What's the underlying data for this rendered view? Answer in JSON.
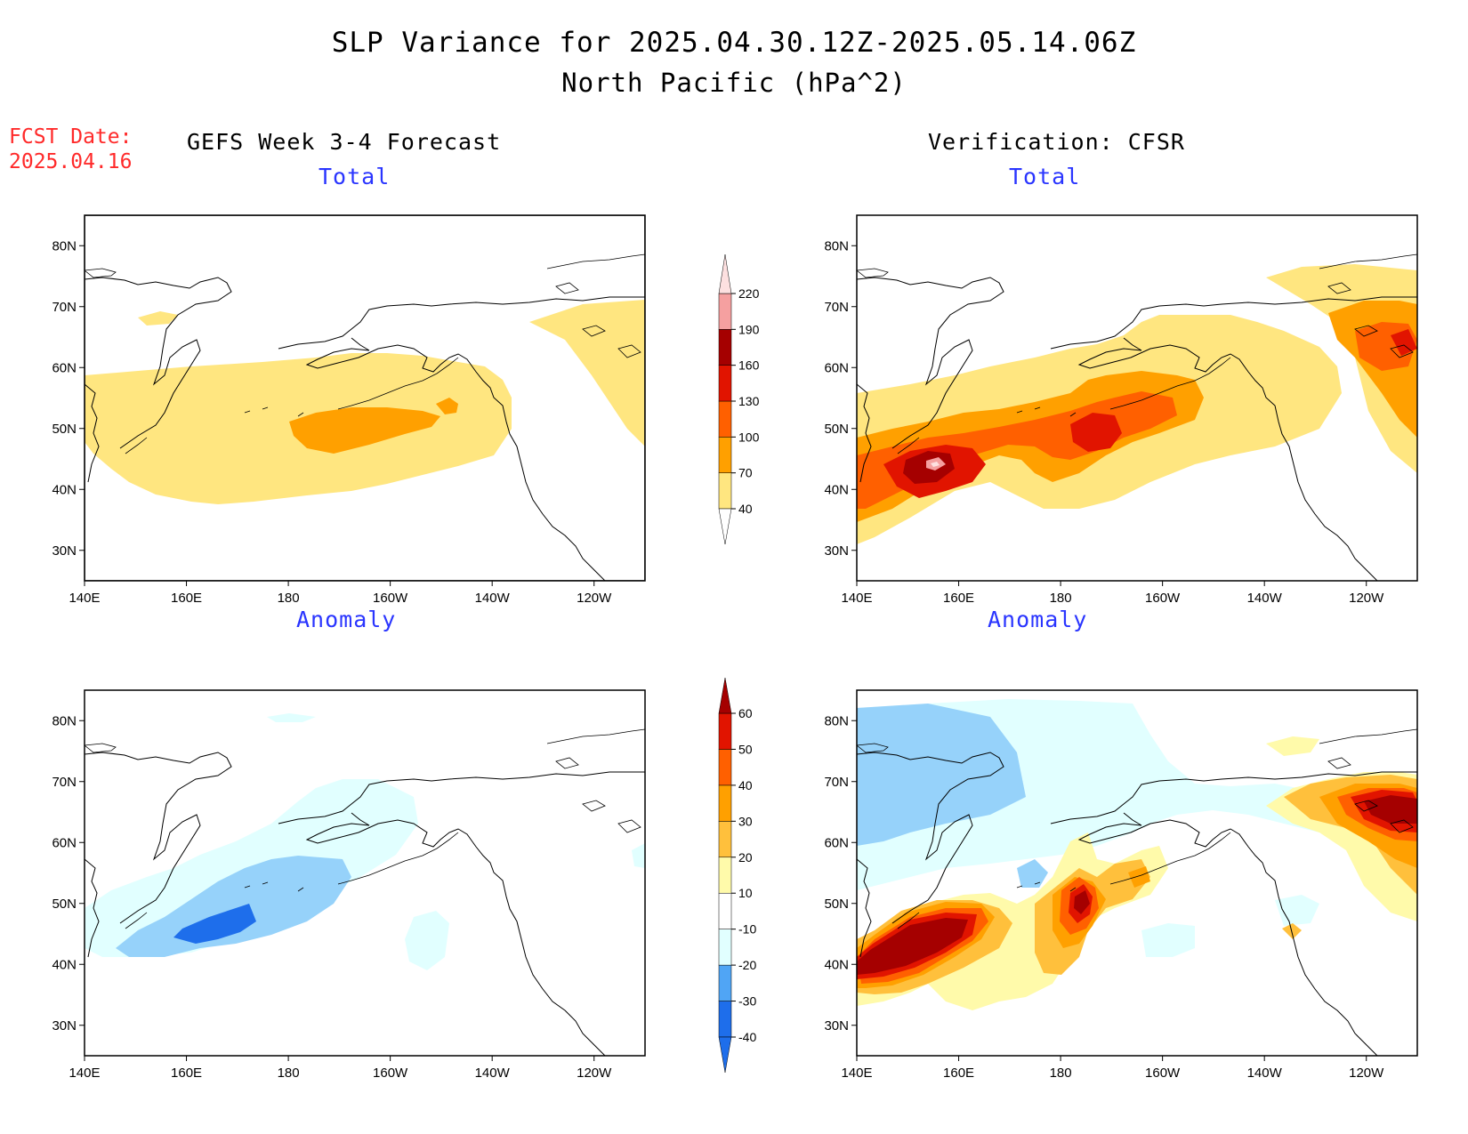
{
  "header": {
    "title": "SLP Variance for 2025.04.30.12Z-2025.05.14.06Z",
    "subtitle": "North Pacific (hPa^2)",
    "fcst_label": "FCST Date:",
    "fcst_date": "2025.04.16"
  },
  "columns": {
    "left": "GEFS Week 3-4 Forecast",
    "right": "Verification: CFSR"
  },
  "panels": {
    "total": "Total",
    "anomaly": "Anomaly"
  },
  "axes": {
    "lon_labels": [
      "140E",
      "160E",
      "180",
      "160W",
      "140W",
      "120W"
    ],
    "lat_labels": [
      "80N",
      "70N",
      "60N",
      "50N",
      "40N",
      "30N"
    ],
    "lon_range": [
      140,
      250
    ],
    "lat_range": [
      25,
      85
    ]
  },
  "colorbars": {
    "total": {
      "levels": [
        "40",
        "70",
        "100",
        "130",
        "160",
        "190",
        "220"
      ],
      "colors": [
        "#ffe680",
        "#ffa000",
        "#ff6000",
        "#e11400",
        "#a50000",
        "#f5a0a0",
        "#fde0e0"
      ]
    },
    "anomaly": {
      "levels": [
        "-40",
        "-30",
        "-20",
        "-10",
        "10",
        "20",
        "30",
        "40",
        "50",
        "60"
      ],
      "colors": [
        "#1e6eeb",
        "#1e6eeb",
        "#50a5f5",
        "#96d2fa",
        "#e1ffff",
        "#ffffff",
        "#fffaaa",
        "#ffc03c",
        "#ffa000",
        "#ff6000",
        "#e11400",
        "#a50000"
      ]
    }
  },
  "colors": {
    "title_text": "#000000",
    "fcst_text": "#ff2a2a",
    "panel_title_text": "#2a35ff"
  }
}
